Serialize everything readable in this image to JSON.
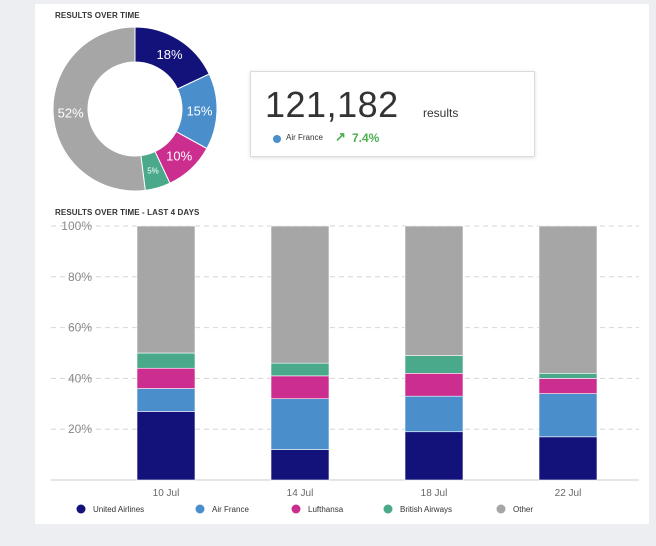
{
  "colors": {
    "United Airlines": "#12127a",
    "Air France": "#4a8fcb",
    "Lufthansa": "#cc2e8f",
    "British Airways": "#4aa98a",
    "Other": "#a6a6a6",
    "positive": "#4caf50"
  },
  "donut_title": "RESULTS OVER TIME",
  "bars_title": "RESULTS OVER TIME - LAST 4 DAYS",
  "tooltip": {
    "value": "121,182",
    "unit": "results",
    "series": "Air France",
    "change_icon": "arrow-up-right-icon",
    "change": "7.4%"
  },
  "chart_data": [
    {
      "type": "pie",
      "title": "RESULTS OVER TIME",
      "slices": [
        {
          "name": "United Airlines",
          "value": 18,
          "label": "18%"
        },
        {
          "name": "Air France",
          "value": 15,
          "label": "15%"
        },
        {
          "name": "Lufthansa",
          "value": 10,
          "label": "10%"
        },
        {
          "name": "British Airways",
          "value": 5,
          "label": "5%"
        },
        {
          "name": "Other",
          "value": 52,
          "label": "52%"
        }
      ]
    },
    {
      "type": "bar",
      "stacked": true,
      "title": "RESULTS OVER TIME - LAST 4 DAYS",
      "categories": [
        "10 Jul",
        "14 Jul",
        "18 Jul",
        "22 Jul"
      ],
      "series": [
        {
          "name": "United Airlines",
          "values": [
            27,
            12,
            19,
            17
          ]
        },
        {
          "name": "Air France",
          "values": [
            9,
            20,
            14,
            17
          ]
        },
        {
          "name": "Lufthansa",
          "values": [
            8,
            9,
            9,
            6
          ]
        },
        {
          "name": "British Airways",
          "values": [
            6,
            5,
            7,
            2
          ]
        },
        {
          "name": "Other",
          "values": [
            50,
            54,
            51,
            58
          ]
        }
      ],
      "ylim": [
        0,
        100
      ],
      "yticks": [
        20,
        40,
        60,
        80,
        100
      ],
      "ytick_labels": [
        "20%",
        "40%",
        "60%",
        "80%",
        "100%"
      ],
      "grid": true,
      "legend": [
        "United Airlines",
        "Air France",
        "Lufthansa",
        "British Airways",
        "Other"
      ],
      "legend_position": "bottom"
    }
  ]
}
